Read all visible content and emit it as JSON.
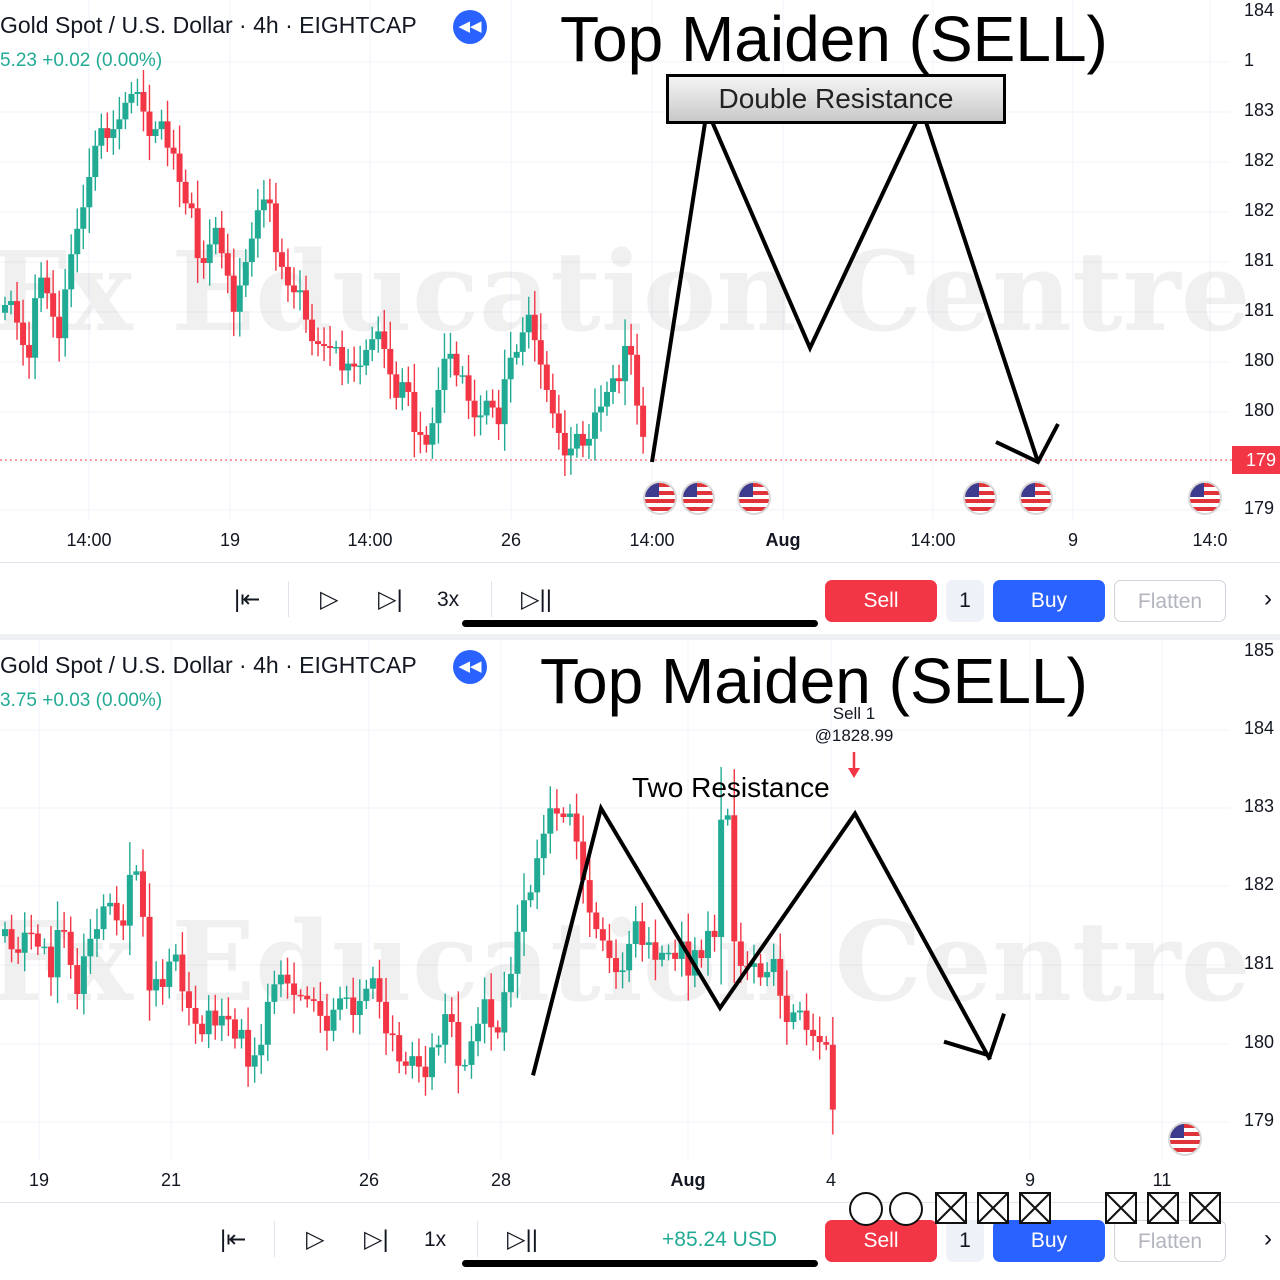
{
  "colors": {
    "up": "#22ab94",
    "down": "#f23645",
    "buy": "#2962ff",
    "accent_line": "#000000"
  },
  "watermark": "Fx Education Centre",
  "panels": [
    {
      "symbol_title": "Gold Spot / U.S. Dollar · 4h · EIGHTCAP",
      "price_line": "5.23  +0.02 (0.00%)",
      "title": "Top Maiden (SELL)",
      "box_label": "Double Resistance",
      "y_labels": [
        "184",
        "1",
        "183",
        "182",
        "182",
        "181",
        "181",
        "180",
        "180",
        "179"
      ],
      "current_price": "179",
      "x_labels": [
        {
          "text": "14:00",
          "bold": false
        },
        {
          "text": "19",
          "bold": false
        },
        {
          "text": "14:00",
          "bold": false
        },
        {
          "text": "26",
          "bold": false
        },
        {
          "text": "14:00",
          "bold": false
        },
        {
          "text": "Aug",
          "bold": true
        },
        {
          "text": "14:00",
          "bold": false
        },
        {
          "text": "9",
          "bold": false
        },
        {
          "text": "14:0",
          "bold": false
        }
      ],
      "toolbar": {
        "speed": "3x",
        "pnl": "",
        "sell": "Sell",
        "qty": "1",
        "buy": "Buy",
        "flatten": "Flatten"
      },
      "pattern": "M pattern sketch: two peaks at the resistance box, arrow down to 179"
    },
    {
      "symbol_title": "Gold Spot / U.S. Dollar · 4h · EIGHTCAP",
      "price_line": "3.75  +0.03 (0.00%)",
      "title": "Top Maiden (SELL)",
      "annotation": "Two Resistance",
      "order_note_1": "Sell 1",
      "order_note_2": "@1828.99",
      "y_labels": [
        "185",
        "184",
        "183",
        "182",
        "181",
        "180",
        "179"
      ],
      "x_labels": [
        {
          "text": "19",
          "bold": false
        },
        {
          "text": "21",
          "bold": false
        },
        {
          "text": "26",
          "bold": false
        },
        {
          "text": "28",
          "bold": false
        },
        {
          "text": "Aug",
          "bold": true
        },
        {
          "text": "4",
          "bold": false
        },
        {
          "text": "9",
          "bold": false
        },
        {
          "text": "11",
          "bold": false
        }
      ],
      "toolbar": {
        "speed": "1x",
        "pnl": "+85.24 USD",
        "sell": "Sell",
        "qty": "1",
        "buy": "Buy",
        "flatten": "Flatten"
      }
    }
  ],
  "chart_data": [
    {
      "type": "candlestick",
      "title": "Top Maiden (SELL)",
      "symbol": "Gold Spot / U.S. Dollar · 4h · EIGHTCAP",
      "y_labels_visible": [
        "184",
        "1",
        "183",
        "182",
        "182",
        "181",
        "181",
        "180",
        "180",
        "179"
      ],
      "x_tick_labels": [
        "14:00",
        "19",
        "14:00",
        "26",
        "14:00",
        "Aug",
        "14:00",
        "9",
        "14:0"
      ],
      "candles_close": [
        1810.6,
        1811.0,
        1808.8,
        1806.5,
        1805.2,
        1811.3,
        1813.4,
        1811.8,
        1809.4,
        1807.2,
        1812.2,
        1815.8,
        1818.4,
        1820.6,
        1823.7,
        1826.9,
        1828.7,
        1827.7,
        1828.6,
        1829.6,
        1831.3,
        1832.2,
        1832.4,
        1830.4,
        1827.9,
        1828.6,
        1829.4,
        1826.7,
        1826.1,
        1823.2,
        1821.0,
        1820.5,
        1815.4,
        1814.9,
        1816.8,
        1818.5,
        1815.9,
        1813.6,
        1809.9,
        1812.6,
        1815.0,
        1817.4,
        1820.3,
        1821.4,
        1821.0,
        1816.0,
        1814.5,
        1812.6,
        1811.9,
        1812.1,
        1809.1,
        1806.9,
        1806.6,
        1806.4,
        1806.2,
        1806.3,
        1803.9,
        1804.6,
        1804.3,
        1804.4,
        1806.0,
        1807.1,
        1807.9,
        1806.1,
        1803.5,
        1801.1,
        1802.7,
        1801.7,
        1797.6,
        1797.3,
        1796.3,
        1798.5,
        1801.9,
        1805.1,
        1805.6,
        1803.4,
        1803.4,
        1800.8,
        1799.1,
        1799.3,
        1800.8,
        1800.1,
        1798.4,
        1803.0,
        1805.2,
        1805.8,
        1807.8,
        1809.6,
        1807.0,
        1804.5,
        1801.9,
        1799.5,
        1797.5,
        1795.2,
        1795.9,
        1797.4,
        1796.2,
        1796.9,
        1799.6,
        1800.2,
        1801.7,
        1803.1,
        1802.8,
        1806.4,
        1805.5,
        1800.3,
        1797.1
      ],
      "projection_path": [
        1797.1,
        1831.0,
        1807.0,
        1831.0,
        1797.0
      ],
      "resistance_label": "Double Resistance",
      "current_price_label": "179"
    },
    {
      "type": "candlestick",
      "title": "Top Maiden (SELL)",
      "symbol": "Gold Spot / U.S. Dollar · 4h · EIGHTCAP",
      "y_labels_visible": [
        "185",
        "184",
        "183",
        "182",
        "181",
        "180",
        "179"
      ],
      "x_tick_labels": [
        "19",
        "21",
        "26",
        "28",
        "Aug",
        "4",
        "9",
        "11"
      ],
      "candles_close": [
        1815.9,
        1813.6,
        1813.2,
        1815.5,
        1815.4,
        1813.9,
        1813.9,
        1810.4,
        1815.8,
        1815.6,
        1811.8,
        1808.5,
        1812.8,
        1814.8,
        1815.9,
        1818.5,
        1818.9,
        1816.9,
        1816.3,
        1822.1,
        1822.5,
        1817.3,
        1808.9,
        1810.2,
        1809.3,
        1812.2,
        1813.0,
        1808.8,
        1806.9,
        1805.1,
        1803.9,
        1806.6,
        1804.9,
        1806.0,
        1805.6,
        1803.4,
        1804.4,
        1800.2,
        1801.5,
        1802.7,
        1807.6,
        1809.6,
        1810.7,
        1809.7,
        1808.4,
        1808.3,
        1807.9,
        1807.7,
        1806.0,
        1804.3,
        1806.7,
        1808.0,
        1808.1,
        1806.1,
        1807.7,
        1809.1,
        1810.3,
        1807.6,
        1804.0,
        1803.8,
        1800.8,
        1800.3,
        1801.4,
        1800.2,
        1799.0,
        1802.4,
        1802.7,
        1806.2,
        1805.3,
        1800.3,
        1800.4,
        1803.1,
        1805.1,
        1807.9,
        1804.7,
        1804.1,
        1808.7,
        1810.8,
        1815.6,
        1819.2,
        1820.1,
        1824.0,
        1826.8,
        1829.7,
        1829.1,
        1828.7,
        1829.1,
        1825.9,
        1821.5,
        1817.8,
        1815.9,
        1814.6,
        1812.6,
        1811.0,
        1811.2,
        1814.2,
        1816.8,
        1814.1,
        1814.4,
        1812.4,
        1813.2,
        1813.2,
        1812.5,
        1814.5,
        1810.6,
        1813.5,
        1812.6,
        1815.7,
        1815.0,
        1828.4,
        1828.9,
        1814.5,
        1811.7,
        1811.6,
        1812.0,
        1810.4,
        1811.0,
        1812.5,
        1808.3,
        1805.3,
        1806.4,
        1806.6,
        1804.4,
        1803.7,
        1803.0,
        1802.7,
        1795.3
      ],
      "trend_path": [
        1799.2,
        1829.7,
        1806.9,
        1829.1,
        1801.0
      ],
      "sell_order": {
        "label": "Sell 1",
        "price": 1828.99
      },
      "resistance_label": "Two Resistance",
      "pnl": "+85.24 USD"
    }
  ]
}
